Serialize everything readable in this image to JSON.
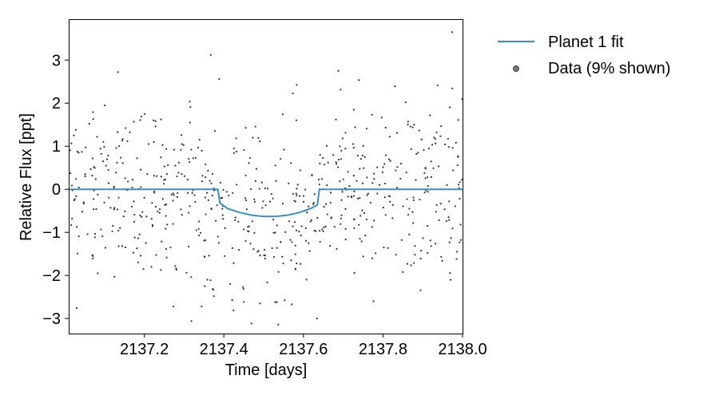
{
  "chart_data": {
    "type": "scatter",
    "xlabel": "Time [days]",
    "ylabel": "Relative Flux [ppt]",
    "xlim": [
      2137.01,
      2138.0
    ],
    "ylim": [
      -3.35,
      3.95
    ],
    "x_ticks": [
      2137.2,
      2137.4,
      2137.6,
      2137.8,
      2138.0
    ],
    "x_tick_labels": [
      "2137.2",
      "2137.4",
      "2137.6",
      "2137.8",
      "2138.0"
    ],
    "y_ticks": [
      -3,
      -2,
      -1,
      0,
      1,
      2,
      3
    ],
    "y_tick_labels": [
      "−3",
      "−2",
      "−1",
      "0",
      "1",
      "2",
      "3"
    ],
    "grid": false,
    "legend_placement": "outside-right-top",
    "colors": {
      "fit": "#3a8fc0",
      "data": "#333333"
    },
    "series": [
      {
        "name": "Planet 1 fit",
        "kind": "line",
        "x": [
          2137.01,
          2137.385,
          2137.39,
          2137.41,
          2137.44,
          2137.47,
          2137.5,
          2137.53,
          2137.56,
          2137.59,
          2137.62,
          2137.635,
          2137.64,
          2138.0
        ],
        "y": [
          0.0,
          0.0,
          -0.32,
          -0.45,
          -0.54,
          -0.6,
          -0.63,
          -0.63,
          -0.6,
          -0.54,
          -0.44,
          -0.36,
          0.0,
          0.0
        ]
      },
      {
        "name": "Data (9% shown)",
        "kind": "scatter",
        "x": [
          2137.134,
          2137.367,
          2137.688,
          2137.857,
          2137.968,
          2137.974,
          2137.273,
          2137.344,
          2137.634,
          2137.776,
          2137.529,
          2137.491,
          2137.533,
          2137.416,
          2137.375,
          2137.083,
          2137.023,
          2137.035,
          2137.062,
          2137.097,
          2137.153,
          2137.182,
          2137.211,
          2137.242,
          2137.287,
          2137.318,
          2137.455,
          2137.592,
          2137.662,
          2137.725,
          2137.817,
          2137.884,
          2137.935,
          2137.989,
          2137.044,
          2137.121,
          2137.176,
          2137.254,
          2137.331,
          2137.402,
          2137.583,
          2137.613,
          2137.706,
          2137.753,
          2137.802,
          2137.866,
          2137.941,
          2137.995,
          2137.071,
          2137.198,
          2137.266,
          2137.352,
          2137.569,
          2137.742,
          2137.833,
          2137.912,
          2137.986
        ],
        "y": [
          2.72,
          3.12,
          2.75,
          2.02,
          1.9,
          3.65,
          -2.72,
          -2.72,
          -3.0,
          -2.6,
          -2.62,
          -2.65,
          -2.62,
          -2.2,
          -2.48,
          -1.95,
          1.25,
          0.85,
          1.52,
          1.1,
          1.42,
          0.72,
          1.05,
          1.62,
          0.62,
          0.92,
          0.32,
          0.44,
          0.62,
          1.05,
          1.22,
          0.82,
          1.32,
          0.75,
          -0.52,
          -0.85,
          -1.12,
          -0.62,
          -0.95,
          -1.55,
          -1.72,
          -1.25,
          -0.92,
          -0.55,
          -1.35,
          -1.05,
          -0.72,
          -0.82,
          -1.55,
          -1.85,
          -1.35,
          -2.25,
          -1.65,
          -1.15,
          -1.52,
          -0.85,
          -1.45
        ]
      }
    ]
  }
}
